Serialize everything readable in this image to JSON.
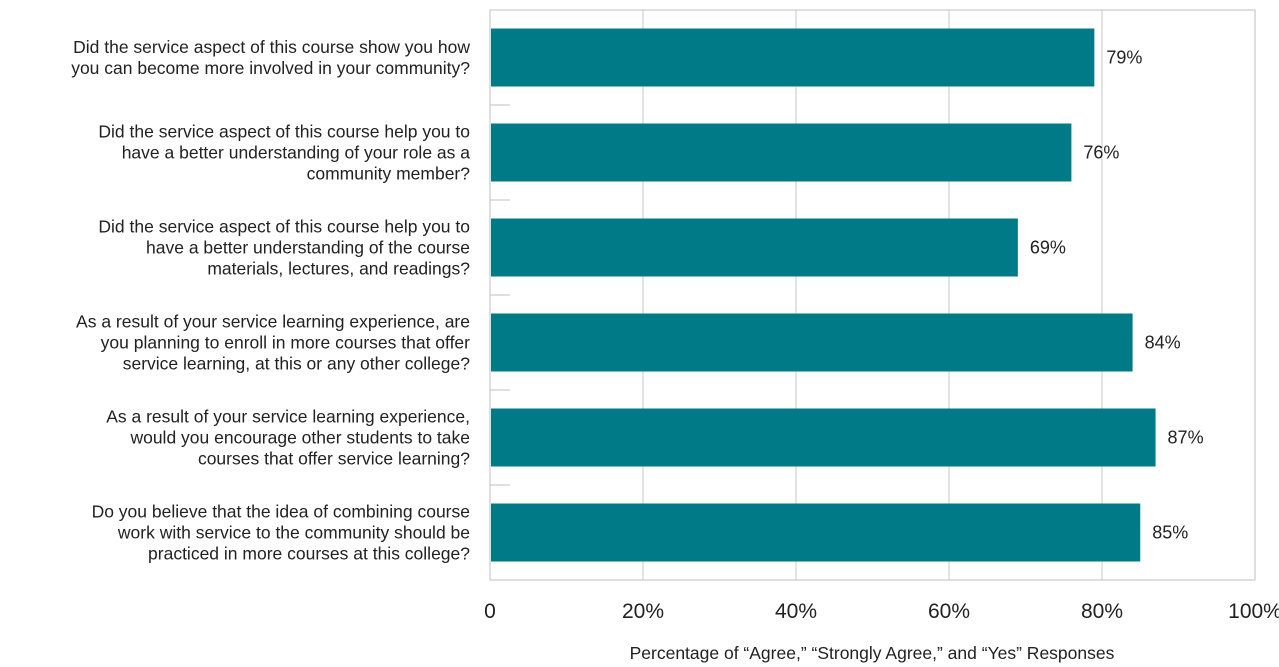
{
  "chart_data": {
    "type": "bar",
    "orientation": "horizontal",
    "categories": [
      [
        "Did the service aspect of this course show you how",
        "you can become more involved in your community?"
      ],
      [
        "Did the service aspect of this course help you to",
        "have a better understanding of your role as a",
        "community member?"
      ],
      [
        "Did the service aspect of this course help you to",
        "have a better understanding of the course",
        "materials, lectures, and readings?"
      ],
      [
        "As a result of your service learning experience, are",
        "you planning to enroll in more courses that offer",
        "service learning, at this or any other college?"
      ],
      [
        "As a result of your service learning experience,",
        "would you encourage other students to take",
        "courses that offer service learning?"
      ],
      [
        "Do you believe that the idea of combining course",
        "work with service to the community should be",
        "practiced in more courses at this college?"
      ]
    ],
    "values": [
      79,
      76,
      69,
      84,
      87,
      85
    ],
    "data_labels": [
      "79%",
      "76%",
      "69%",
      "84%",
      "87%",
      "85%"
    ],
    "xlim": [
      0,
      100
    ],
    "x_ticks": [
      0,
      20,
      40,
      60,
      80,
      100
    ],
    "x_tick_labels": [
      "0",
      "20%",
      "40%",
      "60%",
      "80%",
      "100%"
    ],
    "xlabel": "Percentage of “Agree,” “Strongly Agree,” and “Yes” Responses",
    "ylabel": "",
    "title": "",
    "grid": true,
    "legend": "none",
    "colors": {
      "bar": "#007a87",
      "grid": "#c8c8c8",
      "text": "#222222",
      "frame": "#bfbfbf"
    }
  }
}
